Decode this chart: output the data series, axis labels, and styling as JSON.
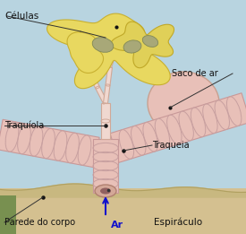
{
  "background_color": "#b8d4e0",
  "labels": {
    "celulas": "Células",
    "traquiola": "Traquíola",
    "saco_de_ar": "Saco de ar",
    "traqueia": "Traqueia",
    "parede_do_corpo": "Parede do corpo",
    "ar": "Ar",
    "espiráculo": "Espiráculo"
  },
  "colors": {
    "background": "#b8d4e0",
    "trachea_fill": "#e8c0b8",
    "trachea_stroke": "#c89898",
    "trachea_ring": "#c8a0a0",
    "air_sac_fill": "#e8c8c0",
    "air_sac_stroke": "#c8a898",
    "cell_fill": "#e8d870",
    "cell_stroke": "#c8b840",
    "cell_nucleus": "#b0a870",
    "tracheole_fill": "#f0d8d0",
    "tracheole_stroke": "#d0a898",
    "body_wall_fill": "#d4c090",
    "body_wall_top": "#b8a870",
    "label_color": "#111111",
    "ar_color": "#1010cc",
    "dot_color": "#111111"
  },
  "figsize": [
    2.75,
    2.61
  ],
  "dpi": 100
}
